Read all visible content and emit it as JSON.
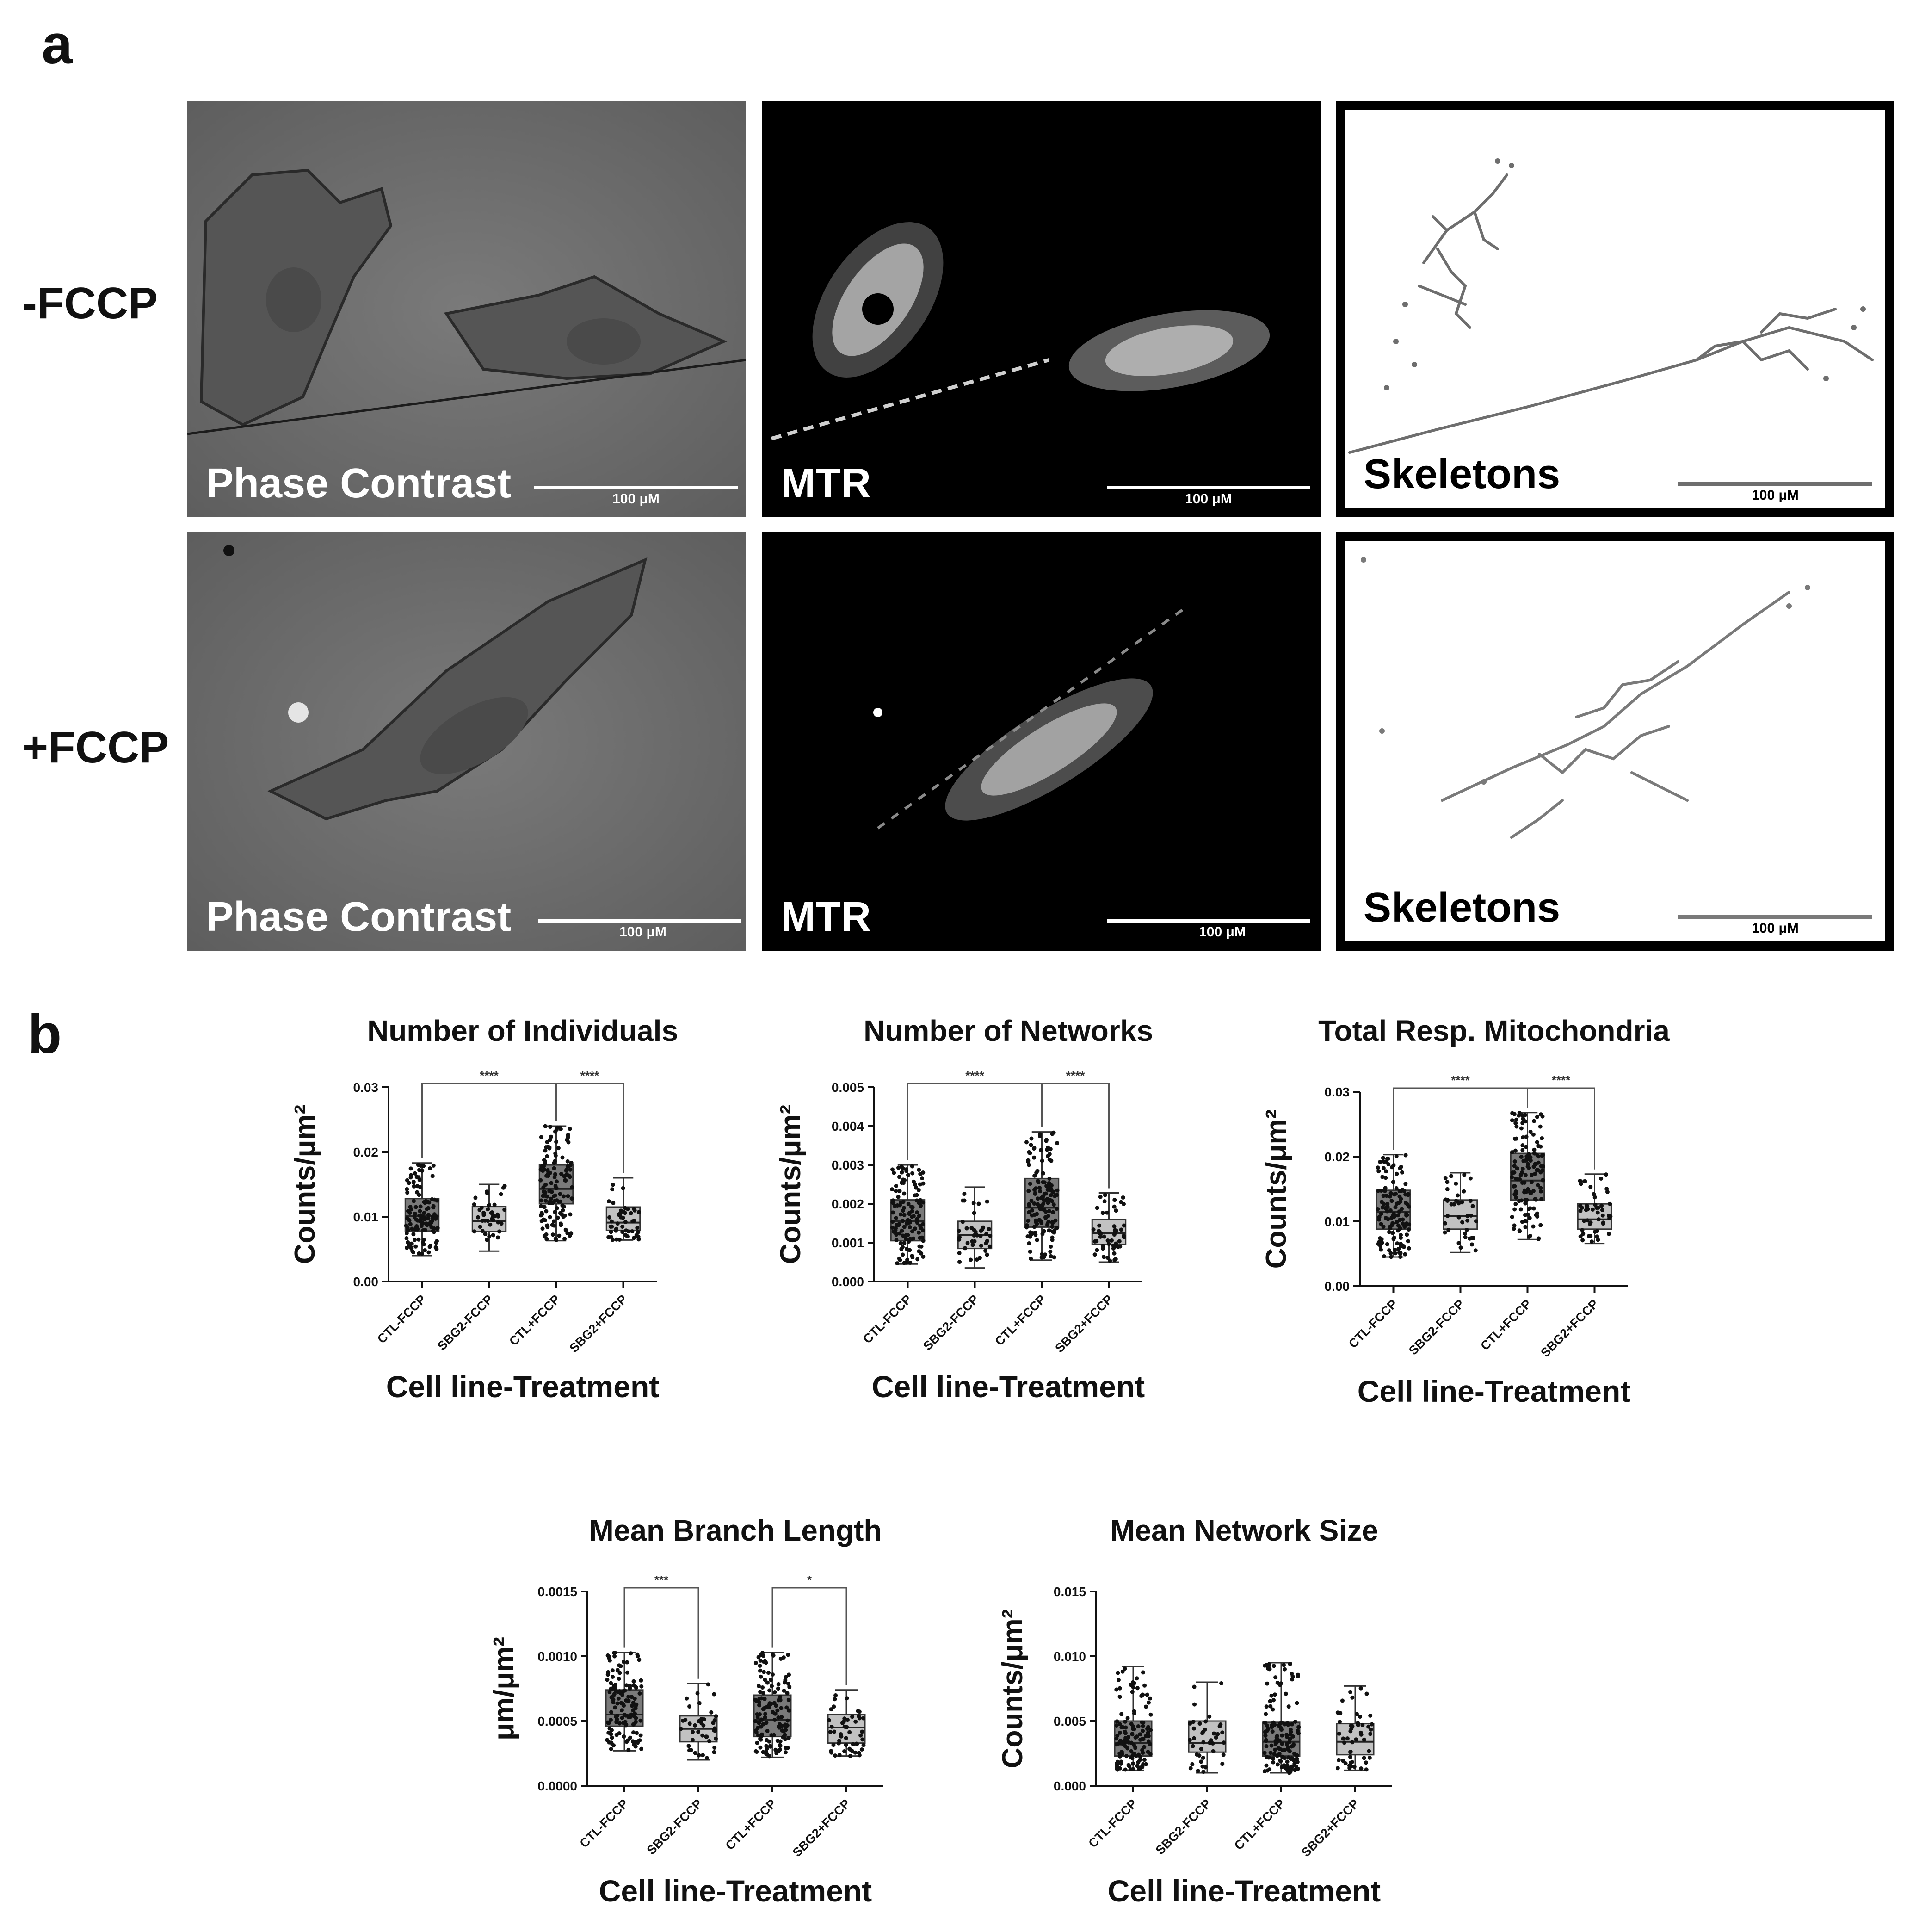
{
  "panel_a": {
    "letter": "a",
    "rows": [
      {
        "label": "-FCCP",
        "panels": [
          {
            "kind": "phase",
            "label": "Phase Contrast",
            "scale": "100 μM"
          },
          {
            "kind": "mtr",
            "label": "MTR",
            "scale": "100 μM"
          },
          {
            "kind": "skel",
            "label": "Skeletons",
            "scale": "100 μM"
          }
        ]
      },
      {
        "label": "+FCCP",
        "panels": [
          {
            "kind": "phase",
            "label": "Phase Contrast",
            "scale": "100 μM"
          },
          {
            "kind": "mtr",
            "label": "MTR",
            "scale": "100 μM"
          },
          {
            "kind": "skel",
            "label": "Skeletons",
            "scale": "100 μM"
          }
        ]
      }
    ]
  },
  "panel_b": {
    "letter": "b"
  },
  "chart_data": [
    {
      "type": "box",
      "title": "Number of Individuals",
      "xlabel": "Cell line-Treatment",
      "ylabel": "Counts/μm²",
      "ylim": [
        0,
        0.03
      ],
      "yticks": [
        "0.00",
        "0.01",
        "0.02",
        "0.03"
      ],
      "categories": [
        "CTL-FCCP",
        "SBG2-FCCP",
        "CTL+FCCP",
        "SBG2+FCCP"
      ],
      "boxes": [
        {
          "min": 0.004,
          "q1": 0.0078,
          "median": 0.0101,
          "q3": 0.0128,
          "max": 0.0183
        },
        {
          "min": 0.0047,
          "q1": 0.0077,
          "median": 0.0093,
          "q3": 0.0116,
          "max": 0.015
        },
        {
          "min": 0.0063,
          "q1": 0.012,
          "median": 0.0143,
          "q3": 0.018,
          "max": 0.024
        },
        {
          "min": 0.0064,
          "q1": 0.0079,
          "median": 0.0091,
          "q3": 0.0115,
          "max": 0.016
        }
      ],
      "n_points": [
        130,
        40,
        140,
        50
      ],
      "fills": [
        "#7a7a7a",
        "#c2c2c2",
        "#7a7a7a",
        "#c2c2c2"
      ],
      "significance": [
        {
          "from": 0,
          "to": 2,
          "label": "****"
        },
        {
          "from": 2,
          "to": 3,
          "label": "****"
        }
      ]
    },
    {
      "type": "box",
      "title": "Number of Networks",
      "xlabel": "Cell line-Treatment",
      "ylabel": "Counts/μm²",
      "ylim": [
        0,
        0.005
      ],
      "yticks": [
        "0.000",
        "0.001",
        "0.002",
        "0.003",
        "0.004",
        "0.005"
      ],
      "categories": [
        "CTL-FCCP",
        "SBG2-FCCP",
        "CTL+FCCP",
        "SBG2+FCCP"
      ],
      "boxes": [
        {
          "min": 0.00045,
          "q1": 0.00105,
          "median": 0.00155,
          "q3": 0.0021,
          "max": 0.003
        },
        {
          "min": 0.00035,
          "q1": 0.00085,
          "median": 0.0012,
          "q3": 0.00155,
          "max": 0.00243
        },
        {
          "min": 0.00055,
          "q1": 0.0014,
          "median": 0.0019,
          "q3": 0.00265,
          "max": 0.00385
        },
        {
          "min": 0.0005,
          "q1": 0.00095,
          "median": 0.00125,
          "q3": 0.0016,
          "max": 0.00228
        }
      ],
      "n_points": [
        130,
        40,
        140,
        50
      ],
      "fills": [
        "#7a7a7a",
        "#c2c2c2",
        "#7a7a7a",
        "#c2c2c2"
      ],
      "significance": [
        {
          "from": 0,
          "to": 2,
          "label": "****"
        },
        {
          "from": 2,
          "to": 3,
          "label": "****"
        }
      ]
    },
    {
      "type": "box",
      "title": "Total Resp. Mitochondria",
      "xlabel": "Cell line-Treatment",
      "ylabel": "Counts/μm²",
      "ylim": [
        0,
        0.03
      ],
      "yticks": [
        "0.00",
        "0.01",
        "0.02",
        "0.03"
      ],
      "categories": [
        "CTL-FCCP",
        "SBG2-FCCP",
        "CTL+FCCP",
        "SBG2+FCCP"
      ],
      "boxes": [
        {
          "min": 0.0045,
          "q1": 0.0088,
          "median": 0.0115,
          "q3": 0.0148,
          "max": 0.0203
        },
        {
          "min": 0.0052,
          "q1": 0.0088,
          "median": 0.0108,
          "q3": 0.0133,
          "max": 0.0175
        },
        {
          "min": 0.0072,
          "q1": 0.0133,
          "median": 0.0163,
          "q3": 0.0205,
          "max": 0.0268
        },
        {
          "min": 0.0066,
          "q1": 0.0088,
          "median": 0.0103,
          "q3": 0.0127,
          "max": 0.0173
        }
      ],
      "n_points": [
        130,
        40,
        140,
        50
      ],
      "fills": [
        "#7a7a7a",
        "#c2c2c2",
        "#7a7a7a",
        "#c2c2c2"
      ],
      "significance": [
        {
          "from": 0,
          "to": 2,
          "label": "****"
        },
        {
          "from": 2,
          "to": 3,
          "label": "****"
        }
      ]
    },
    {
      "type": "box",
      "title": "Mean Branch Length",
      "xlabel": "Cell line-Treatment",
      "ylabel": "μm/μm²",
      "ylim": [
        0,
        0.0015
      ],
      "yticks": [
        "0.0000",
        "0.0005",
        "0.0010",
        "0.0015"
      ],
      "categories": [
        "CTL-FCCP",
        "SBG2-FCCP",
        "CTL+FCCP",
        "SBG2+FCCP"
      ],
      "boxes": [
        {
          "min": 0.00027,
          "q1": 0.00046,
          "median": 0.00055,
          "q3": 0.00074,
          "max": 0.00103
        },
        {
          "min": 0.0002,
          "q1": 0.00034,
          "median": 0.00044,
          "q3": 0.00054,
          "max": 0.00079
        },
        {
          "min": 0.00022,
          "q1": 0.00038,
          "median": 0.00051,
          "q3": 0.0007,
          "max": 0.00103
        },
        {
          "min": 0.00023,
          "q1": 0.00033,
          "median": 0.00045,
          "q3": 0.00055,
          "max": 0.00074
        }
      ],
      "n_points": [
        130,
        40,
        140,
        50
      ],
      "fills": [
        "#7a7a7a",
        "#c2c2c2",
        "#7a7a7a",
        "#c2c2c2"
      ],
      "significance": [
        {
          "from": 0,
          "to": 1,
          "label": "***"
        },
        {
          "from": 2,
          "to": 3,
          "label": "*"
        }
      ]
    },
    {
      "type": "box",
      "title": "Mean Network Size",
      "xlabel": "Cell line-Treatment",
      "ylabel": "Counts/μm²",
      "ylim": [
        0,
        0.015
      ],
      "yticks": [
        "0.000",
        "0.005",
        "0.010",
        "0.015"
      ],
      "categories": [
        "CTL-FCCP",
        "SBG2-FCCP",
        "CTL+FCCP",
        "SBG2+FCCP"
      ],
      "boxes": [
        {
          "min": 0.0012,
          "q1": 0.0023,
          "median": 0.0033,
          "q3": 0.005,
          "max": 0.0092
        },
        {
          "min": 0.001,
          "q1": 0.0026,
          "median": 0.0033,
          "q3": 0.005,
          "max": 0.008
        },
        {
          "min": 0.001,
          "q1": 0.0023,
          "median": 0.0034,
          "q3": 0.0049,
          "max": 0.0095
        },
        {
          "min": 0.0012,
          "q1": 0.0024,
          "median": 0.0034,
          "q3": 0.0048,
          "max": 0.0077
        }
      ],
      "n_points": [
        130,
        40,
        140,
        50
      ],
      "fills": [
        "#7a7a7a",
        "#c2c2c2",
        "#7a7a7a",
        "#c2c2c2"
      ],
      "significance": []
    }
  ]
}
